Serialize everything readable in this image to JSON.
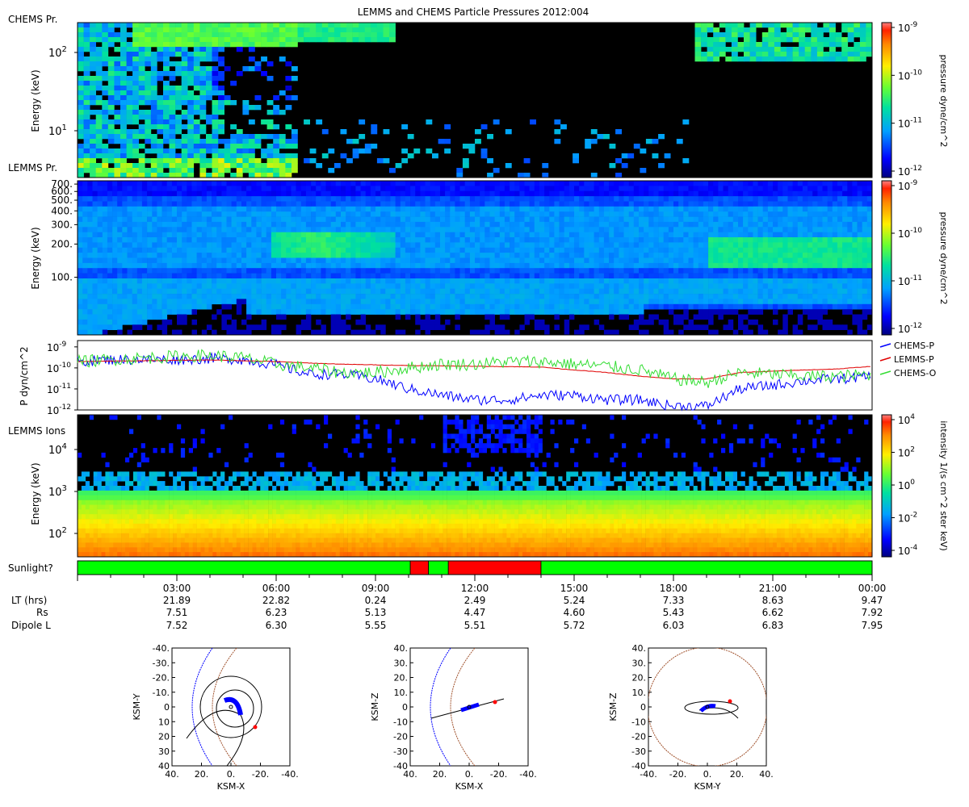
{
  "title": "LEMMS and CHEMS Particle Pressures  2012:004",
  "colors": {
    "chems_p": "#0000ff",
    "lemms_p": "#e00000",
    "chems_o": "#33dd33",
    "sun": "#00ff00",
    "shadow": "#ff0000",
    "bs_outer": "#0000ff",
    "mp": "#a0522d"
  },
  "panels": {
    "chems": {
      "corner_top": "CHEMS Pr.",
      "corner_bottom": "LEMMS Pr.",
      "ylabel": "Energy (keV)",
      "scale": "log",
      "ylim": [
        3,
        250
      ],
      "ticks": [
        {
          "label": "10",
          "exp": "2",
          "value": 100
        },
        {
          "label": "10",
          "exp": "1",
          "value": 10
        }
      ],
      "colorbar_label": "pressure dyne/cm^2",
      "colorbar_ticks": [
        {
          "label": "10",
          "exp": "-9"
        },
        {
          "label": "10",
          "exp": "-10"
        },
        {
          "label": "10",
          "exp": "-11"
        },
        {
          "label": "10",
          "exp": "-12"
        }
      ]
    },
    "lemms_pr": {
      "ylabel": "Energy (keV)",
      "scale": "log",
      "ylim": [
        30,
        750
      ],
      "ticks": [
        "700.",
        "600.",
        "500.",
        "400.",
        "300.",
        "200.",
        "100."
      ],
      "colorbar_label": "pressure dyne/cm^2",
      "colorbar_ticks": [
        {
          "label": "10",
          "exp": "-9"
        },
        {
          "label": "10",
          "exp": "-10"
        },
        {
          "label": "10",
          "exp": "-11"
        },
        {
          "label": "10",
          "exp": "-12"
        }
      ]
    },
    "pressure": {
      "ylabel": "P dyn/cm^2",
      "ticks": [
        {
          "label": "10",
          "exp": "-9"
        },
        {
          "label": "10",
          "exp": "-10"
        },
        {
          "label": "10",
          "exp": "-11"
        },
        {
          "label": "10",
          "exp": "-12"
        }
      ]
    },
    "lemms_ions": {
      "corner": "LEMMS Ions",
      "ylabel": "Energy (keV)",
      "scale": "log",
      "ylim": [
        25,
        60000
      ],
      "ticks": [
        {
          "label": "10",
          "exp": "4",
          "value": 10000
        },
        {
          "label": "10",
          "exp": "3",
          "value": 1000
        },
        {
          "label": "10",
          "exp": "2",
          "value": 100
        }
      ],
      "colorbar_label": "intensity 1/(s cm^2 ster keV)",
      "colorbar_ticks": [
        {
          "label": "10",
          "exp": "4"
        },
        {
          "label": "10",
          "exp": "2"
        },
        {
          "label": "10",
          "exp": "0"
        },
        {
          "label": "10",
          "exp": "-2"
        },
        {
          "label": "10",
          "exp": "-4"
        }
      ]
    },
    "sunlight": {
      "label": "Sunlight?",
      "segments": [
        {
          "start": 0.0,
          "end": 10.05,
          "state": "sun"
        },
        {
          "start": 10.05,
          "end": 10.6,
          "state": "shadow"
        },
        {
          "start": 10.6,
          "end": 11.2,
          "state": "sun"
        },
        {
          "start": 11.2,
          "end": 14.0,
          "state": "shadow"
        },
        {
          "start": 14.0,
          "end": 24.0,
          "state": "sun"
        }
      ]
    }
  },
  "time_axis": {
    "row_labels": [
      "LT (hrs)",
      "Rs",
      "Dipole L"
    ],
    "columns": [
      {
        "time": "03:00",
        "lt": "21.89",
        "rs": "7.51",
        "l": "7.52"
      },
      {
        "time": "06:00",
        "lt": "22.82",
        "rs": "6.23",
        "l": "6.30"
      },
      {
        "time": "09:00",
        "lt": "0.24",
        "rs": "5.13",
        "l": "5.55"
      },
      {
        "time": "12:00",
        "lt": "2.49",
        "rs": "4.47",
        "l": "5.51"
      },
      {
        "time": "15:00",
        "lt": "5.24",
        "rs": "4.60",
        "l": "5.72"
      },
      {
        "time": "18:00",
        "lt": "7.33",
        "rs": "5.43",
        "l": "6.03"
      },
      {
        "time": "21:00",
        "lt": "8.63",
        "rs": "6.62",
        "l": "6.83"
      },
      {
        "time": "00:00",
        "lt": "9.47",
        "rs": "7.92",
        "l": "7.95"
      }
    ]
  },
  "orbit_plots": [
    {
      "xlabel": "KSM-X",
      "ylabel": "KSM-Y",
      "xticks": [
        "40.",
        "20.",
        "0.",
        "-20.",
        "-40."
      ],
      "yticks": [
        "-40.",
        "-30.",
        "-20.",
        "-10.",
        "0",
        "10",
        "20",
        "30",
        "40"
      ]
    },
    {
      "xlabel": "KSM-X",
      "ylabel": "KSM-Z",
      "xticks": [
        "40.",
        "20.",
        "0.",
        "-20.",
        "-40."
      ],
      "yticks": [
        "40.",
        "30.",
        "20.",
        "10.",
        "0",
        "-10",
        "-20",
        "-30",
        "-40"
      ]
    },
    {
      "xlabel": "KSM-Y",
      "ylabel": "KSM-Z",
      "xticks": [
        "-40.",
        "-20.",
        "0.",
        "20.",
        "40."
      ],
      "yticks": [
        "40.",
        "30.",
        "20.",
        "10.",
        "0",
        "-10",
        "-20",
        "-30",
        "-40"
      ]
    }
  ],
  "chart_data": {
    "type": "line",
    "title": "LEMMS and CHEMS Particle Pressures  2012:004",
    "xlabel": "",
    "ylabel": "P dyn/cm^2",
    "scale": "log",
    "ylim": [
      1e-12,
      2e-09
    ],
    "x_hours": [
      0,
      1,
      2,
      3,
      4,
      5,
      6,
      7,
      8,
      9,
      10,
      11,
      12,
      13,
      14,
      15,
      16,
      17,
      18,
      19,
      20,
      21,
      22,
      23,
      24
    ],
    "series": [
      {
        "name": "CHEMS-P",
        "values": [
          2e-10,
          2.5e-10,
          2.5e-10,
          2.5e-10,
          2.8e-10,
          2.5e-10,
          1.4e-10,
          5e-11,
          5e-11,
          3e-11,
          1e-11,
          5e-12,
          3e-12,
          3e-12,
          5e-12,
          5e-12,
          3e-12,
          3e-12,
          1.5e-12,
          1.5e-12,
          1e-11,
          1.5e-11,
          2.5e-11,
          3e-11,
          4e-11
        ]
      },
      {
        "name": "LEMMS-P",
        "values": [
          2e-10,
          2.1e-10,
          2.2e-10,
          2.3e-10,
          2.4e-10,
          2.2e-10,
          2e-10,
          1.7e-10,
          1.5e-10,
          1.4e-10,
          1.3e-10,
          1.25e-10,
          1.2e-10,
          1.15e-10,
          1.1e-10,
          8e-11,
          6e-11,
          4e-11,
          3e-11,
          3e-11,
          6e-11,
          7e-11,
          8e-11,
          9e-11,
          1.2e-10
        ]
      },
      {
        "name": "CHEMS-O",
        "values": [
          2e-10,
          2.5e-10,
          3e-10,
          3.5e-10,
          4e-10,
          3e-10,
          1.5e-10,
          1e-10,
          6e-11,
          6e-11,
          1e-10,
          1.5e-10,
          1.5e-10,
          2e-10,
          2e-10,
          1.5e-10,
          1.2e-10,
          8e-11,
          3e-11,
          2e-11,
          6e-11,
          5e-11,
          4e-11,
          4e-11,
          5e-11
        ]
      }
    ]
  }
}
